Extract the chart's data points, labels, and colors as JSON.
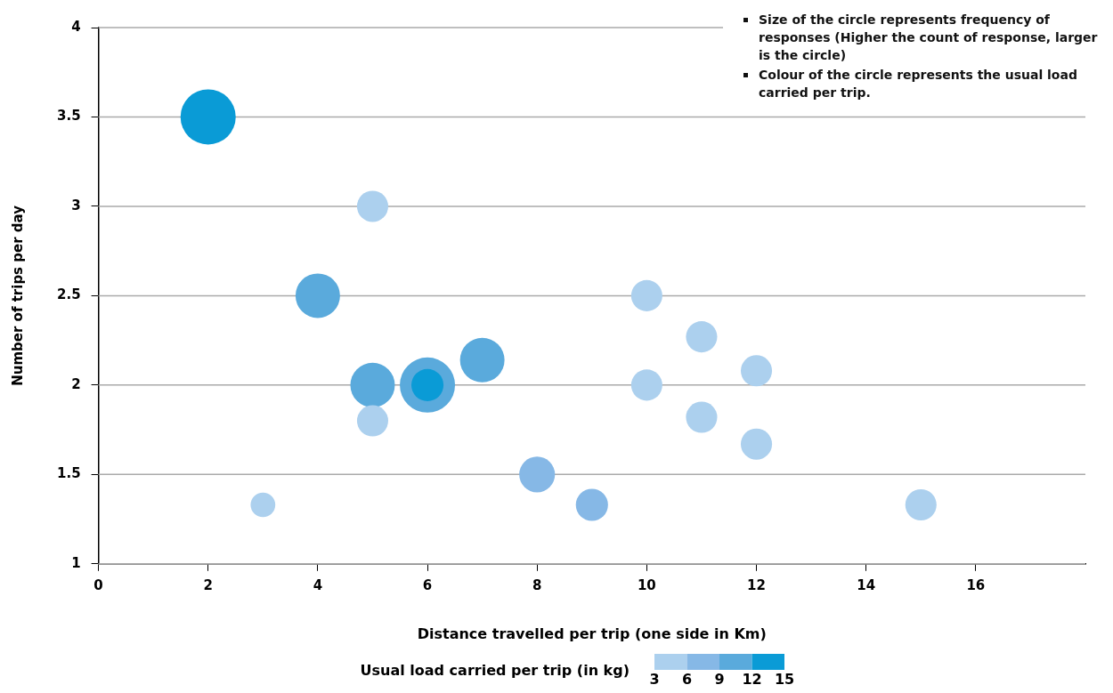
{
  "chart_data": {
    "type": "bubble",
    "xlabel": "Distance travelled per trip (one side in Km)",
    "ylabel": "Number of trips per day",
    "clabel": "Usual load carried per trip (in kg)",
    "clim": [
      3,
      15
    ],
    "cticks": [
      3,
      6,
      9,
      12,
      15
    ],
    "annotations": [
      "Size of the circle represents frequency of responses (Higher the count of response, larger is the circle)",
      "Colour of the circle represents the usual load carried per trip."
    ],
    "xlim": [
      0,
      18
    ],
    "xticks": [
      0,
      2,
      4,
      6,
      8,
      10,
      12,
      14,
      16
    ],
    "ylim": [
      1,
      4
    ],
    "yticks": [
      1,
      1.5,
      2,
      2.5,
      3,
      3.5,
      4
    ],
    "grid": "y",
    "legend": false,
    "series": [
      {
        "x": [
          2,
          6,
          6,
          4,
          5,
          7,
          8,
          9,
          5,
          5,
          3,
          10,
          10,
          11,
          11,
          12,
          12,
          15
        ],
        "values": [
          3.5,
          2,
          2,
          2.5,
          2,
          2.14,
          1.5,
          1.33,
          3,
          1.8,
          1.33,
          2.5,
          2,
          2.27,
          1.82,
          2.08,
          1.67,
          1.33
        ],
        "sizes": [
          1,
          1,
          0.34,
          0.65,
          0.65,
          0.65,
          0.42,
          0.34,
          0.32,
          0.32,
          0.2,
          0.32,
          0.32,
          0.32,
          0.32,
          0.32,
          0.32,
          0.32
        ],
        "colors": [
          "#0a9bd6",
          "#5aaadc",
          "#0a9bd6",
          "#5aaadc",
          "#5aaadc",
          "#5aaadc",
          "#86b8e6",
          "#86b8e6",
          "#acd0ee",
          "#acd0ee",
          "#acd0ee",
          "#acd0ee",
          "#acd0ee",
          "#acd0ee",
          "#acd0ee",
          "#acd0ee",
          "#acd0ee",
          "#acd0ee"
        ]
      }
    ]
  }
}
